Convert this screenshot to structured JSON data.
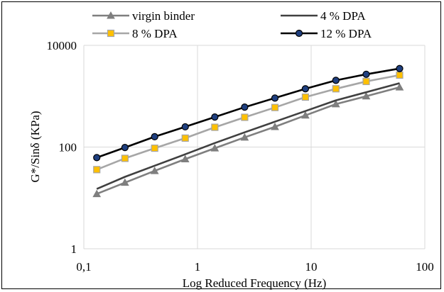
{
  "chart_data": {
    "type": "line",
    "xlabel": "Log Reduced Frequency (Hz)",
    "ylabel": "G*/Sinδ (KPa)",
    "xscale": "log",
    "yscale": "log",
    "xlim": [
      0.1,
      100
    ],
    "ylim": [
      1,
      10000
    ],
    "x_ticks": [
      "0,1",
      "1",
      "10",
      "100"
    ],
    "y_ticks": [
      "1",
      "100",
      "10000"
    ],
    "grid": true,
    "legend_position": "top",
    "x": [
      0.13,
      0.23,
      0.42,
      0.78,
      1.42,
      2.6,
      4.8,
      8.9,
      16.5,
      30.5,
      60
    ],
    "series": [
      {
        "name": "virgin binder",
        "color": "#7f7f7f",
        "marker": "triangle",
        "values": [
          12,
          20,
          34,
          58,
          95,
          155,
          250,
          420,
          700,
          1000,
          1500
        ]
      },
      {
        "name": "4 % DPA",
        "color": "#404040",
        "marker": "none",
        "values": [
          15,
          26,
          43,
          72,
          120,
          195,
          315,
          510,
          830,
          1200,
          1800
        ]
      },
      {
        "name": "8 % DPA",
        "color": "#a6a6a6",
        "marker": "square",
        "marker_fill": "#ffc000",
        "values": [
          36,
          60,
          95,
          150,
          245,
          385,
          600,
          960,
          1400,
          1950,
          2600
        ]
      },
      {
        "name": "12 % DPA",
        "color": "#000000",
        "marker": "circle",
        "marker_fill": "#1f3f7f",
        "values": [
          62,
          98,
          160,
          250,
          390,
          610,
          920,
          1400,
          2050,
          2700,
          3500
        ]
      }
    ]
  }
}
